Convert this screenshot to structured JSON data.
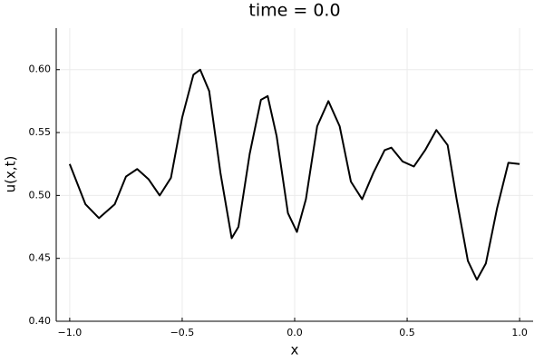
{
  "chart_data": {
    "type": "line",
    "title": "time = 0.0",
    "x_label": "x",
    "y_label": "u(x,t)",
    "grid": true,
    "xlim": [
      -1.06,
      1.06
    ],
    "ylim": [
      0.4,
      0.633
    ],
    "xticks": [
      {
        "value": -1.0,
        "label": "−1.0"
      },
      {
        "value": -0.5,
        "label": "−0.5"
      },
      {
        "value": 0,
        "label": "0.0"
      },
      {
        "value": 0.5,
        "label": "0.5"
      },
      {
        "value": 1.0,
        "label": "1.0"
      }
    ],
    "yticks": [
      {
        "value": 0.4,
        "label": "0.40"
      },
      {
        "value": 0.45,
        "label": "0.45"
      },
      {
        "value": 0.5,
        "label": "0.50"
      },
      {
        "value": 0.55,
        "label": "0.55"
      },
      {
        "value": 0.6,
        "label": "0.60"
      }
    ],
    "series": [
      {
        "color": "#000000",
        "x": [
          -1.0,
          -0.93,
          -0.87,
          -0.8,
          -0.75,
          -0.7,
          -0.65,
          -0.6,
          -0.55,
          -0.5,
          -0.45,
          -0.42,
          -0.38,
          -0.33,
          -0.28,
          -0.25,
          -0.2,
          -0.15,
          -0.12,
          -0.08,
          -0.03,
          0.01,
          0.05,
          0.1,
          0.15,
          0.2,
          0.25,
          0.3,
          0.35,
          0.4,
          0.43,
          0.48,
          0.53,
          0.58,
          0.63,
          0.68,
          0.72,
          0.77,
          0.81,
          0.85,
          0.9,
          0.95,
          1.0
        ],
        "values": [
          0.525,
          0.493,
          0.482,
          0.493,
          0.515,
          0.521,
          0.513,
          0.5,
          0.514,
          0.562,
          0.596,
          0.6,
          0.583,
          0.518,
          0.466,
          0.475,
          0.533,
          0.576,
          0.579,
          0.547,
          0.486,
          0.471,
          0.497,
          0.555,
          0.575,
          0.555,
          0.511,
          0.497,
          0.518,
          0.536,
          0.538,
          0.527,
          0.523,
          0.536,
          0.552,
          0.54,
          0.497,
          0.448,
          0.433,
          0.446,
          0.49,
          0.526,
          0.525
        ]
      }
    ]
  }
}
